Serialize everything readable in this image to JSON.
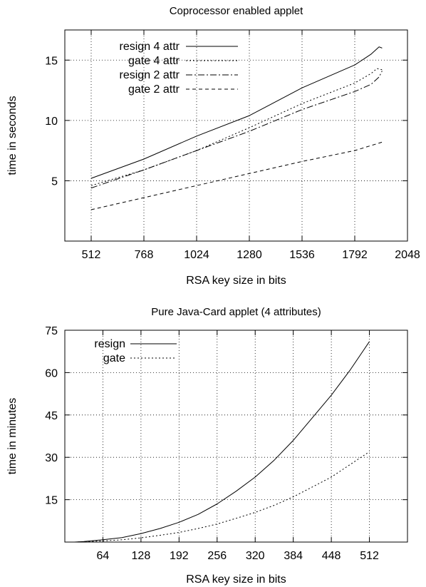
{
  "chart_data": [
    {
      "type": "line",
      "title": "Coprocessor enabled applet",
      "xlabel": "RSA key size in bits",
      "ylabel": "time in seconds",
      "xlim": [
        384,
        2048
      ],
      "ylim": [
        0,
        17.5
      ],
      "xticks": [
        512,
        768,
        1024,
        1280,
        1536,
        1792,
        2048
      ],
      "yticks": [
        5,
        10,
        15
      ],
      "grid": true,
      "legend": "top-left",
      "series": [
        {
          "name": "resign 4 attr",
          "style": "solid",
          "x": [
            512,
            768,
            1024,
            1280,
            1536,
            1792,
            1872,
            1910,
            1925
          ],
          "y": [
            5.2,
            6.8,
            8.7,
            10.4,
            12.7,
            14.6,
            15.5,
            16.1,
            16.0
          ]
        },
        {
          "name": "gate 4 attr",
          "style": "dotted",
          "x": [
            512,
            768,
            1024,
            1280,
            1536,
            1792,
            1872,
            1900,
            1925
          ],
          "y": [
            4.6,
            5.9,
            7.5,
            9.4,
            11.4,
            13.1,
            13.9,
            14.3,
            14.2
          ]
        },
        {
          "name": "resign 2 attr",
          "style": "dashdot",
          "x": [
            512,
            768,
            1024,
            1280,
            1536,
            1792,
            1872,
            1910,
            1925
          ],
          "y": [
            4.4,
            5.9,
            7.5,
            9.1,
            10.9,
            12.4,
            13.0,
            13.6,
            14.1
          ]
        },
        {
          "name": "gate 2 attr",
          "style": "dashed",
          "x": [
            512,
            768,
            1024,
            1280,
            1536,
            1792,
            1925
          ],
          "y": [
            2.6,
            3.6,
            4.6,
            5.6,
            6.6,
            7.5,
            8.2
          ]
        }
      ]
    },
    {
      "type": "line",
      "title": "Pure Java-Card applet (4 attributes)",
      "xlabel": "RSA key size in bits",
      "ylabel": "time in minutes",
      "xlim": [
        0,
        576
      ],
      "ylim": [
        0,
        75
      ],
      "xticks": [
        64,
        128,
        192,
        256,
        320,
        384,
        448,
        512
      ],
      "yticks": [
        15,
        30,
        45,
        60,
        75
      ],
      "grid": true,
      "legend": "top-left",
      "series": [
        {
          "name": "resign",
          "style": "solid",
          "x": [
            16,
            32,
            64,
            96,
            128,
            160,
            192,
            224,
            256,
            288,
            320,
            352,
            384,
            416,
            448,
            480,
            512
          ],
          "y": [
            0,
            0.2,
            0.8,
            1.6,
            3,
            4.8,
            7,
            9.8,
            13.5,
            18,
            23,
            29,
            36,
            44,
            52,
            61,
            71
          ]
        },
        {
          "name": "gate",
          "style": "dotted",
          "x": [
            16,
            32,
            64,
            96,
            128,
            160,
            192,
            224,
            256,
            288,
            320,
            352,
            384,
            416,
            448,
            480,
            512
          ],
          "y": [
            0,
            0.1,
            0.4,
            0.8,
            1.5,
            2.4,
            3.4,
            4.8,
            6.4,
            8.4,
            10.5,
            13,
            16,
            19.5,
            23,
            27.5,
            32
          ]
        }
      ]
    }
  ]
}
